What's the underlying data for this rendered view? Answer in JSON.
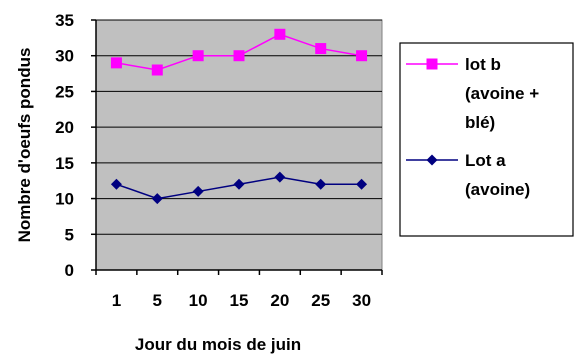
{
  "chart_data": {
    "type": "line",
    "categories": [
      "1",
      "5",
      "10",
      "15",
      "20",
      "25",
      "30"
    ],
    "series": [
      {
        "name": "lot b (avoine + blé)",
        "legend_lines": [
          "lot b",
          "(avoine +",
          "blé)"
        ],
        "values": [
          29,
          28,
          30,
          30,
          33,
          31,
          30
        ],
        "color": "#FF00FF",
        "marker": "square"
      },
      {
        "name": "Lot a (avoine)",
        "legend_lines": [
          "Lot a",
          "(avoine)"
        ],
        "values": [
          12,
          10,
          11,
          12,
          13,
          12,
          12
        ],
        "color": "#000080",
        "marker": "diamond"
      }
    ],
    "xlabel": "Jour du mois de juin",
    "ylabel": "Nombre d'oeufs pondus",
    "ylim": [
      0,
      35
    ],
    "yticks": [
      0,
      5,
      10,
      15,
      20,
      25,
      30,
      35
    ],
    "grid": true,
    "plot_background": "#C0C0C0",
    "legend_position": "right"
  }
}
